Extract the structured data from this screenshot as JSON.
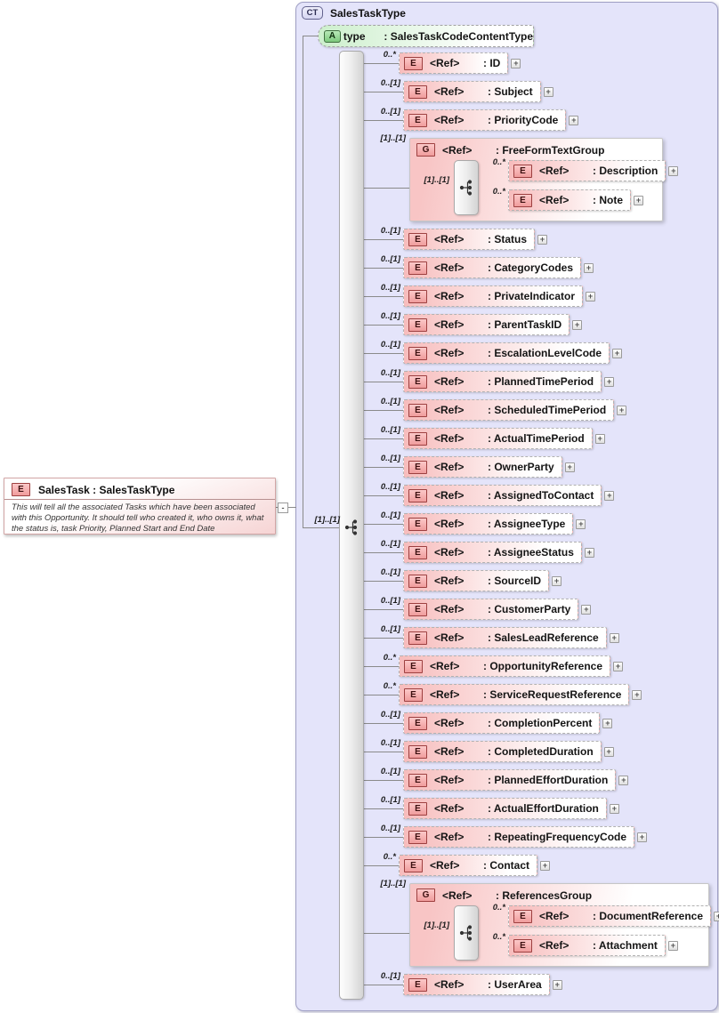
{
  "ui": {
    "ref_label": "<Ref>",
    "expand_glyph": "+",
    "collapse_glyph": "-",
    "badges": {
      "complex_type": "CT",
      "element": "E",
      "attribute": "A",
      "group": "G"
    },
    "colors": {
      "container_fill": "#E4E4FA",
      "container_border": "#9F9FC4",
      "element_fill": "#F7BCBC",
      "attribute_fill": "#CCEFCC",
      "group_fill": "#F8C5C5",
      "element_badge_fill": "#F09C9C",
      "attribute_badge_fill": "#7CC87C",
      "complex_type_badge_fill": "#D6D6F2",
      "connector_line": "#8A8A8A"
    }
  },
  "root_element": {
    "title": "SalesTask : SalesTaskType",
    "documentation": "This will tell all the associated Tasks which have been associated with this Opportunity. It should tell who created it, who owns it, what the status is, task Priority, Planned Start and End Date"
  },
  "complex_type": {
    "title": "SalesTaskType",
    "sequence_cardinality": "[1]..[1]",
    "attribute": {
      "name": "type",
      "type": ": SalesTaskCodeContentType"
    },
    "items": [
      {
        "kind": "element",
        "cardinality": "0..*",
        "label": ": ID"
      },
      {
        "kind": "element",
        "cardinality": "0..[1]",
        "label": ": Subject"
      },
      {
        "kind": "element",
        "cardinality": "0..[1]",
        "label": ": PriorityCode"
      },
      {
        "kind": "group",
        "cardinality": "[1]..[1]",
        "label": ": FreeFormTextGroup",
        "inner_cardinality": "[1]..[1]",
        "children": [
          {
            "cardinality": "0..*",
            "label": ": Description"
          },
          {
            "cardinality": "0..*",
            "label": ": Note"
          }
        ]
      },
      {
        "kind": "element",
        "cardinality": "0..[1]",
        "label": ": Status"
      },
      {
        "kind": "element",
        "cardinality": "0..[1]",
        "label": ": CategoryCodes"
      },
      {
        "kind": "element",
        "cardinality": "0..[1]",
        "label": ": PrivateIndicator"
      },
      {
        "kind": "element",
        "cardinality": "0..[1]",
        "label": ": ParentTaskID"
      },
      {
        "kind": "element",
        "cardinality": "0..[1]",
        "label": ": EscalationLevelCode"
      },
      {
        "kind": "element",
        "cardinality": "0..[1]",
        "label": ": PlannedTimePeriod"
      },
      {
        "kind": "element",
        "cardinality": "0..[1]",
        "label": ": ScheduledTimePeriod"
      },
      {
        "kind": "element",
        "cardinality": "0..[1]",
        "label": ": ActualTimePeriod"
      },
      {
        "kind": "element",
        "cardinality": "0..[1]",
        "label": ": OwnerParty"
      },
      {
        "kind": "element",
        "cardinality": "0..[1]",
        "label": ": AssignedToContact"
      },
      {
        "kind": "element",
        "cardinality": "0..[1]",
        "label": ": AssigneeType"
      },
      {
        "kind": "element",
        "cardinality": "0..[1]",
        "label": ": AssigneeStatus"
      },
      {
        "kind": "element",
        "cardinality": "0..[1]",
        "label": ": SourceID"
      },
      {
        "kind": "element",
        "cardinality": "0..[1]",
        "label": ": CustomerParty"
      },
      {
        "kind": "element",
        "cardinality": "0..[1]",
        "label": ": SalesLeadReference"
      },
      {
        "kind": "element",
        "cardinality": "0..*",
        "label": ": OpportunityReference"
      },
      {
        "kind": "element",
        "cardinality": "0..*",
        "label": ": ServiceRequestReference"
      },
      {
        "kind": "element",
        "cardinality": "0..[1]",
        "label": ": CompletionPercent"
      },
      {
        "kind": "element",
        "cardinality": "0..[1]",
        "label": ": CompletedDuration"
      },
      {
        "kind": "element",
        "cardinality": "0..[1]",
        "label": ": PlannedEffortDuration"
      },
      {
        "kind": "element",
        "cardinality": "0..[1]",
        "label": ": ActualEffortDuration"
      },
      {
        "kind": "element",
        "cardinality": "0..[1]",
        "label": ": RepeatingFrequencyCode"
      },
      {
        "kind": "element",
        "cardinality": "0..*",
        "label": ": Contact"
      },
      {
        "kind": "group",
        "cardinality": "[1]..[1]",
        "label": ": ReferencesGroup",
        "inner_cardinality": "[1]..[1]",
        "children": [
          {
            "cardinality": "0..*",
            "label": ": DocumentReference"
          },
          {
            "cardinality": "0..*",
            "label": ": Attachment"
          }
        ]
      },
      {
        "kind": "element",
        "cardinality": "0..[1]",
        "label": ": UserArea"
      }
    ]
  }
}
